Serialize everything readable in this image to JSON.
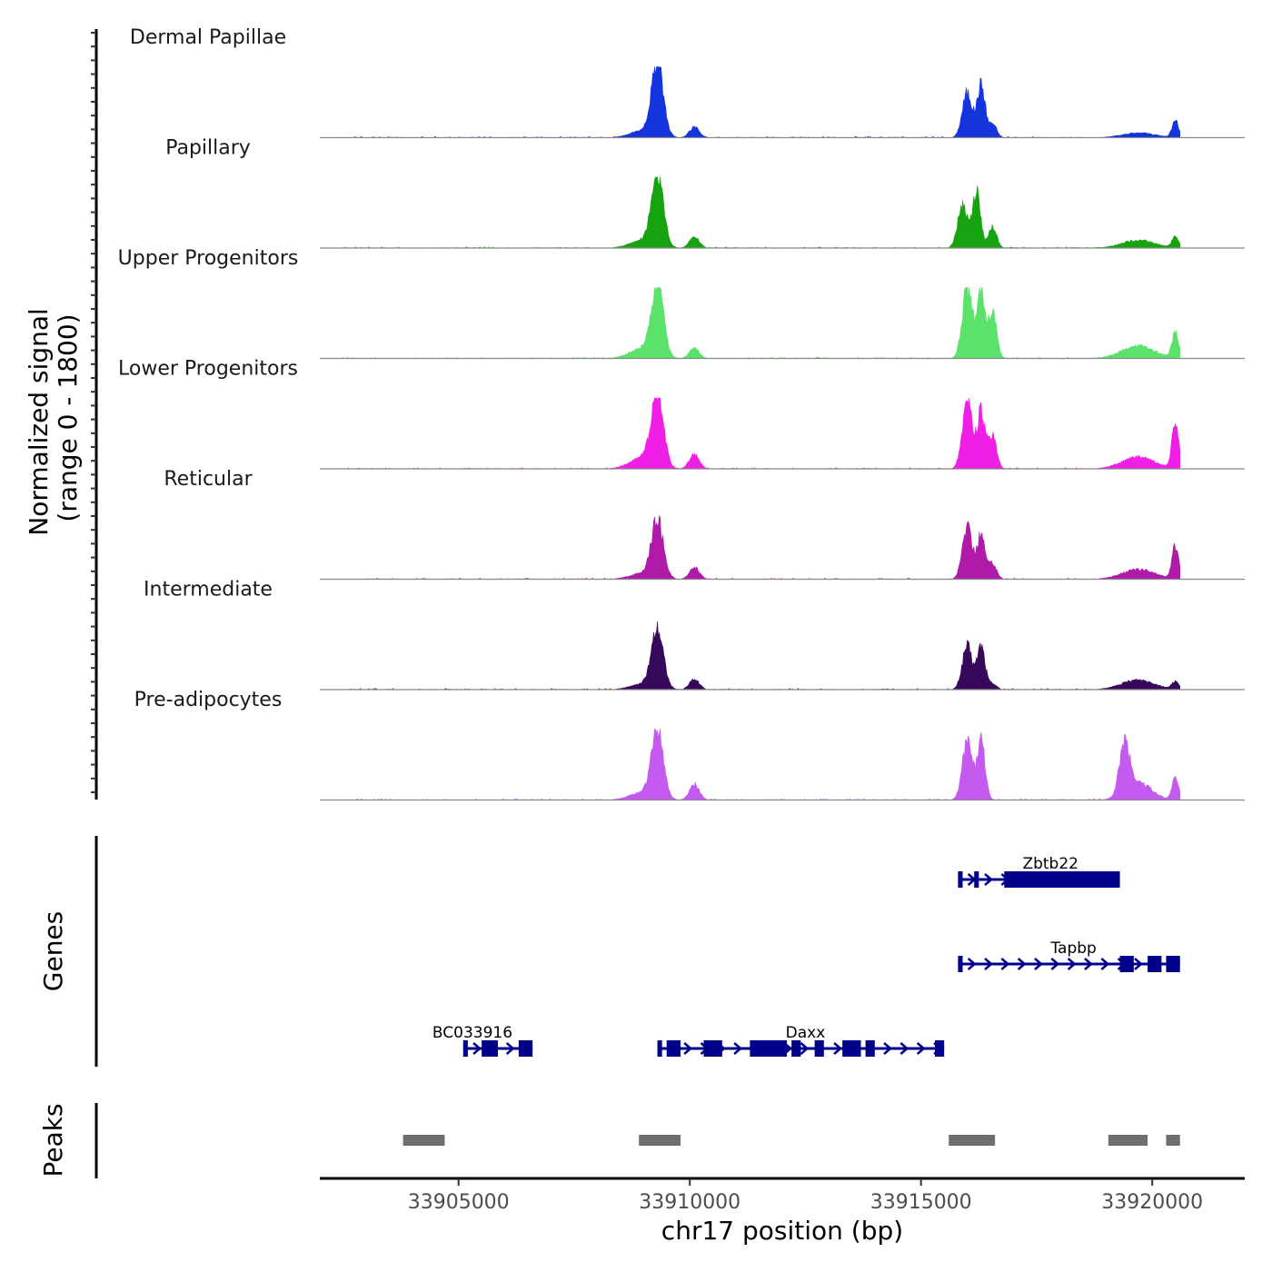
{
  "chart_data": {
    "type": "area",
    "title": "",
    "chromosome": "chr17",
    "xlabel": "chr17 position (bp)",
    "ylabel": "Normalized signal",
    "ylabel_range": "(range 0 - 1800)",
    "ylim": [
      0,
      1800
    ],
    "xlim": [
      33902000,
      33922000
    ],
    "xticks": [
      33905000,
      33910000,
      33915000,
      33920000
    ],
    "xtick_labels": [
      "33905000",
      "33910000",
      "33915000",
      "33920000"
    ],
    "series": [
      {
        "name": "Dermal Papillae",
        "color": "#1434DC",
        "peaks": [
          [
            33909300,
            1800,
            180
          ],
          [
            33909000,
            180,
            400
          ],
          [
            33910100,
            260,
            150
          ],
          [
            33916000,
            1150,
            150
          ],
          [
            33916300,
            1350,
            120
          ],
          [
            33916550,
            350,
            120
          ],
          [
            33919700,
            120,
            500
          ],
          [
            33920500,
            420,
            100
          ]
        ]
      },
      {
        "name": "Papillary",
        "color": "#17A30F",
        "peaks": [
          [
            33909300,
            1750,
            180
          ],
          [
            33909000,
            200,
            400
          ],
          [
            33910100,
            280,
            150
          ],
          [
            33915900,
            1100,
            150
          ],
          [
            33916200,
            1450,
            120
          ],
          [
            33916550,
            550,
            120
          ],
          [
            33919700,
            200,
            500
          ],
          [
            33920500,
            280,
            100
          ]
        ]
      },
      {
        "name": "Upper Progenitors",
        "color": "#5AE26A",
        "peaks": [
          [
            33909300,
            1800,
            180
          ],
          [
            33909000,
            260,
            400
          ],
          [
            33910100,
            260,
            150
          ],
          [
            33916000,
            1800,
            150
          ],
          [
            33916300,
            1700,
            120
          ],
          [
            33916550,
            1200,
            120
          ],
          [
            33919700,
            320,
            500
          ],
          [
            33920500,
            650,
            100
          ]
        ]
      },
      {
        "name": "Lower Progenitors",
        "color": "#F01FE6",
        "peaks": [
          [
            33909300,
            1800,
            180
          ],
          [
            33909000,
            300,
            400
          ],
          [
            33910100,
            380,
            150
          ],
          [
            33916000,
            1750,
            150
          ],
          [
            33916300,
            1450,
            120
          ],
          [
            33916550,
            850,
            120
          ],
          [
            33919700,
            300,
            500
          ],
          [
            33920500,
            1200,
            100
          ]
        ]
      },
      {
        "name": "Reticular",
        "color": "#B01AA8",
        "peaks": [
          [
            33909300,
            1450,
            180
          ],
          [
            33909000,
            150,
            400
          ],
          [
            33910100,
            300,
            150
          ],
          [
            33916000,
            1300,
            150
          ],
          [
            33916300,
            1100,
            120
          ],
          [
            33916550,
            400,
            120
          ],
          [
            33919700,
            250,
            500
          ],
          [
            33920500,
            850,
            100
          ]
        ]
      },
      {
        "name": "Intermediate",
        "color": "#37095A",
        "peaks": [
          [
            33909300,
            1500,
            180
          ],
          [
            33909000,
            140,
            400
          ],
          [
            33910100,
            260,
            150
          ],
          [
            33916000,
            1100,
            150
          ],
          [
            33916300,
            1100,
            120
          ],
          [
            33916550,
            150,
            120
          ],
          [
            33919700,
            250,
            500
          ],
          [
            33920500,
            200,
            100
          ]
        ]
      },
      {
        "name": "Pre-adipocytes",
        "color": "#C55AF0",
        "peaks": [
          [
            33909300,
            1700,
            180
          ],
          [
            33909000,
            200,
            400
          ],
          [
            33910100,
            400,
            150
          ],
          [
            33916000,
            1500,
            150
          ],
          [
            33916300,
            1500,
            120
          ],
          [
            33919400,
            1300,
            150
          ],
          [
            33919700,
            450,
            400
          ],
          [
            33920500,
            550,
            100
          ]
        ]
      }
    ],
    "genes_track": {
      "label": "Genes",
      "color": "#00008B",
      "genes": [
        {
          "name": "Zbtb22",
          "start": 33915800,
          "end": 33919300,
          "label_pos": 33917800,
          "row": 1,
          "exons": [
            [
              33915800,
              33915900
            ],
            [
              33916150,
              33916250
            ],
            [
              33916800,
              33919300
            ]
          ]
        },
        {
          "name": "Tapbp",
          "start": 33915800,
          "end": 33920600,
          "label_pos": 33918300,
          "row": 2,
          "exons": [
            [
              33915800,
              33915900
            ],
            [
              33919300,
              33919600
            ],
            [
              33919900,
              33920200
            ],
            [
              33920300,
              33920600
            ]
          ]
        },
        {
          "name": "BC033916",
          "start": 33905100,
          "end": 33906600,
          "label_pos": 33905300,
          "row": 3,
          "exons": [
            [
              33905100,
              33905200
            ],
            [
              33905500,
              33905850
            ],
            [
              33906300,
              33906600
            ]
          ]
        },
        {
          "name": "Daxx",
          "start": 33909300,
          "end": 33915500,
          "label_pos": 33912500,
          "row": 3,
          "exons": [
            [
              33909300,
              33909400
            ],
            [
              33909500,
              33909800
            ],
            [
              33910300,
              33910700
            ],
            [
              33911300,
              33912100
            ],
            [
              33912200,
              33912400
            ],
            [
              33912700,
              33912900
            ],
            [
              33913300,
              33913700
            ],
            [
              33913800,
              33914000
            ],
            [
              33915300,
              33915500
            ]
          ]
        }
      ]
    },
    "peaks_track": {
      "label": "Peaks",
      "color": "#6E6E6E",
      "regions": [
        [
          33903800,
          33904700
        ],
        [
          33908900,
          33909800
        ],
        [
          33915600,
          33916600
        ],
        [
          33919050,
          33919900
        ],
        [
          33920300,
          33920600
        ]
      ]
    }
  }
}
